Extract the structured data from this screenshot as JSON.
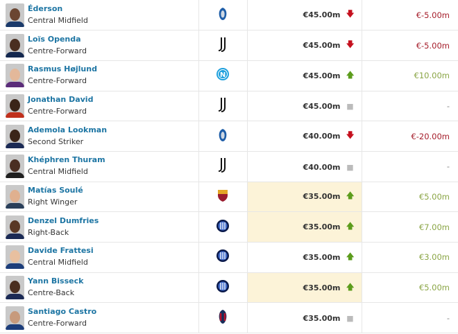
{
  "colors": {
    "name": "#1d75a3",
    "positive": "#8aa545",
    "negative": "#a51d2a",
    "highlight": "#fcf3d8",
    "arrow_up": "#5c9c1c",
    "arrow_down": "#c5101e"
  },
  "players": [
    {
      "name": "Éderson",
      "position": "Central Midfield",
      "club": "atalanta-crest",
      "value": "€45.00m",
      "trend": "down",
      "change": "€-5.00m",
      "highlight": false
    },
    {
      "name": "Loïs Openda",
      "position": "Centre-Forward",
      "club": "juventus-crest",
      "value": "€45.00m",
      "trend": "down",
      "change": "€-5.00m",
      "highlight": false
    },
    {
      "name": "Rasmus Højlund",
      "position": "Centre-Forward",
      "club": "napoli-crest",
      "value": "€45.00m",
      "trend": "up",
      "change": "€10.00m",
      "highlight": false
    },
    {
      "name": "Jonathan David",
      "position": "Centre-Forward",
      "club": "juventus-crest",
      "value": "€45.00m",
      "trend": "none",
      "change": "-",
      "highlight": false
    },
    {
      "name": "Ademola Lookman",
      "position": "Second Striker",
      "club": "atalanta-crest",
      "value": "€40.00m",
      "trend": "down",
      "change": "€-20.00m",
      "highlight": false
    },
    {
      "name": "Khéphren Thuram",
      "position": "Central Midfield",
      "club": "juventus-crest",
      "value": "€40.00m",
      "trend": "none",
      "change": "-",
      "highlight": false
    },
    {
      "name": "Matías Soulé",
      "position": "Right Winger",
      "club": "roma-crest",
      "value": "€35.00m",
      "trend": "up",
      "change": "€5.00m",
      "highlight": true
    },
    {
      "name": "Denzel Dumfries",
      "position": "Right-Back",
      "club": "inter-crest",
      "value": "€35.00m",
      "trend": "up",
      "change": "€7.00m",
      "highlight": true
    },
    {
      "name": "Davide Frattesi",
      "position": "Central Midfield",
      "club": "inter-crest",
      "value": "€35.00m",
      "trend": "up",
      "change": "€3.00m",
      "highlight": false
    },
    {
      "name": "Yann Bisseck",
      "position": "Centre-Back",
      "club": "inter-crest",
      "value": "€35.00m",
      "trend": "up",
      "change": "€5.00m",
      "highlight": true
    },
    {
      "name": "Santiago Castro",
      "position": "Centre-Forward",
      "club": "bologna-crest",
      "value": "€35.00m",
      "trend": "none",
      "change": "-",
      "highlight": false
    }
  ]
}
